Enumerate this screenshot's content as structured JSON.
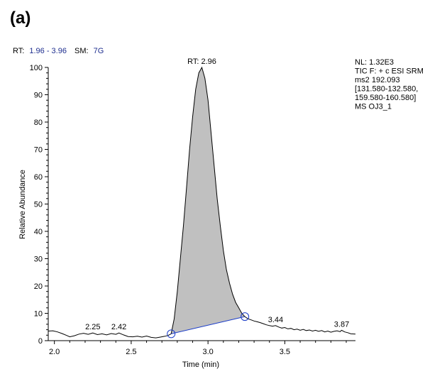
{
  "panel_label": "(a)",
  "header": {
    "rt_label": "RT:",
    "rt_range": "1.96 - 3.96",
    "sm_label": "SM:",
    "sm_value": "7G"
  },
  "info_box": [
    "NL: 1.32E3",
    "TIC F: + c ESI SRM",
    "ms2 192.093",
    "[131.580-132.580,",
    "159.580-160.580]",
    "MS OJ3_1"
  ],
  "chart_data": {
    "type": "line",
    "title": "",
    "xlabel": "Time (min)",
    "ylabel": "Relative Abundance",
    "xlim": [
      1.96,
      3.96
    ],
    "ylim": [
      0,
      100
    ],
    "x_ticks": [
      2.0,
      2.5,
      3.0,
      3.5
    ],
    "x_tick_labels": [
      "2.0",
      "2.5",
      "3.0",
      "3.5"
    ],
    "y_ticks": [
      0,
      10,
      20,
      30,
      40,
      50,
      60,
      70,
      80,
      90,
      100
    ],
    "y_tick_labels": [
      "0",
      "10",
      "20",
      "30",
      "40",
      "50",
      "60",
      "70",
      "80",
      "90",
      "100"
    ],
    "grid": false,
    "trace_color": "#000000",
    "fill_color": "#c0c0c0",
    "baseline_color": "#1a3cc8",
    "series": [
      {
        "points": [
          [
            1.96,
            3.5
          ],
          [
            1.99,
            3.6
          ],
          [
            2.02,
            3.2
          ],
          [
            2.05,
            2.6
          ],
          [
            2.08,
            1.9
          ],
          [
            2.1,
            1.4
          ],
          [
            2.13,
            1.8
          ],
          [
            2.16,
            2.4
          ],
          [
            2.19,
            2.7
          ],
          [
            2.22,
            2.3
          ],
          [
            2.25,
            2.8
          ],
          [
            2.28,
            2.2
          ],
          [
            2.31,
            2.5
          ],
          [
            2.34,
            2.1
          ],
          [
            2.37,
            2.6
          ],
          [
            2.4,
            2.3
          ],
          [
            2.42,
            2.8
          ],
          [
            2.45,
            2.1
          ],
          [
            2.48,
            1.5
          ],
          [
            2.51,
            1.4
          ],
          [
            2.54,
            1.6
          ],
          [
            2.57,
            1.3
          ],
          [
            2.6,
            1.7
          ],
          [
            2.63,
            1.2
          ],
          [
            2.66,
            1.0
          ],
          [
            2.69,
            1.3
          ],
          [
            2.72,
            1.6
          ],
          [
            2.74,
            1.9
          ],
          [
            2.76,
            2.5
          ],
          [
            2.78,
            8
          ],
          [
            2.8,
            18
          ],
          [
            2.82,
            30
          ],
          [
            2.84,
            42
          ],
          [
            2.86,
            56
          ],
          [
            2.88,
            70
          ],
          [
            2.9,
            82
          ],
          [
            2.92,
            92
          ],
          [
            2.94,
            98
          ],
          [
            2.96,
            100
          ],
          [
            2.98,
            96
          ],
          [
            3.0,
            88
          ],
          [
            3.02,
            76
          ],
          [
            3.04,
            64
          ],
          [
            3.06,
            52
          ],
          [
            3.08,
            42
          ],
          [
            3.1,
            33
          ],
          [
            3.12,
            26
          ],
          [
            3.14,
            21
          ],
          [
            3.16,
            17
          ],
          [
            3.18,
            14
          ],
          [
            3.2,
            12
          ],
          [
            3.22,
            10
          ],
          [
            3.24,
            8.8
          ],
          [
            3.26,
            8.0
          ],
          [
            3.28,
            7.6
          ],
          [
            3.3,
            7.2
          ],
          [
            3.32,
            6.9
          ],
          [
            3.34,
            6.6
          ],
          [
            3.36,
            6.2
          ],
          [
            3.38,
            5.8
          ],
          [
            3.4,
            5.5
          ],
          [
            3.42,
            5.3
          ],
          [
            3.44,
            5.5
          ],
          [
            3.46,
            5.0
          ],
          [
            3.48,
            4.6
          ],
          [
            3.5,
            4.8
          ],
          [
            3.52,
            4.3
          ],
          [
            3.54,
            4.5
          ],
          [
            3.56,
            4.0
          ],
          [
            3.58,
            4.2
          ],
          [
            3.6,
            3.8
          ],
          [
            3.62,
            4.1
          ],
          [
            3.64,
            3.7
          ],
          [
            3.66,
            3.9
          ],
          [
            3.68,
            3.5
          ],
          [
            3.7,
            3.8
          ],
          [
            3.72,
            3.4
          ],
          [
            3.74,
            3.7
          ],
          [
            3.76,
            3.2
          ],
          [
            3.78,
            3.5
          ],
          [
            3.8,
            3.1
          ],
          [
            3.82,
            3.4
          ],
          [
            3.84,
            3.6
          ],
          [
            3.86,
            3.3
          ],
          [
            3.87,
            3.8
          ],
          [
            3.89,
            3.2
          ],
          [
            3.91,
            2.9
          ],
          [
            3.93,
            2.5
          ],
          [
            3.96,
            2.4
          ]
        ]
      }
    ],
    "integration": {
      "start": [
        2.76,
        2.5
      ],
      "end": [
        3.24,
        8.8
      ]
    },
    "peak_labels": [
      {
        "text": "RT: 2.96",
        "x": 2.96,
        "y": 100
      },
      {
        "text": "2.25",
        "x": 2.25,
        "y": 2.8
      },
      {
        "text": "2.42",
        "x": 2.42,
        "y": 2.8
      },
      {
        "text": "3.44",
        "x": 3.44,
        "y": 5.5
      },
      {
        "text": "3.87",
        "x": 3.87,
        "y": 3.8
      }
    ]
  }
}
